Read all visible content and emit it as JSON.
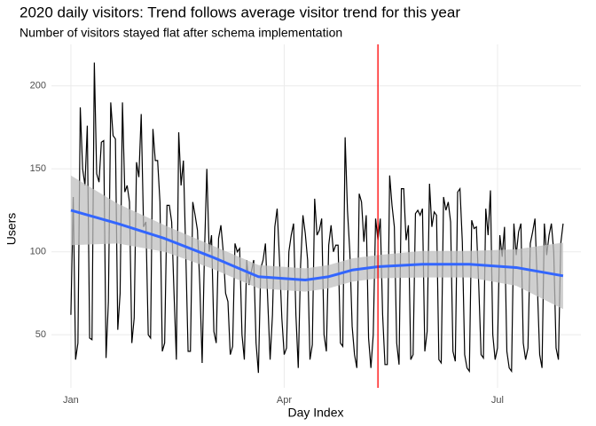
{
  "chart_data": {
    "type": "line",
    "title": "2020 daily visitors: Trend follows average visitor trend for this year",
    "subtitle": "Number of visitors stayed flat after schema implementation",
    "x_label": "Day Index",
    "y_label": "Users",
    "xlim": [
      -8.3,
      217.6
    ],
    "ylim": [
      18,
      225
    ],
    "xticks": [
      {
        "value": 0,
        "label": "Jan"
      },
      {
        "value": 91,
        "label": "Apr"
      },
      {
        "value": 182,
        "label": "Jul"
      }
    ],
    "yticks": [
      50,
      100,
      150,
      200
    ],
    "grid": true,
    "series": [
      {
        "color": "#000000",
        "values": [
          62,
          133,
          35,
          45,
          187,
          150,
          140,
          176,
          48,
          47,
          214,
          147,
          142,
          166,
          167,
          36,
          70,
          190,
          170,
          168,
          53,
          75,
          190,
          136,
          140,
          130,
          45,
          60,
          154,
          145,
          183,
          115,
          118,
          50,
          48,
          174,
          155,
          155,
          130,
          40,
          45,
          128,
          128,
          118,
          75,
          35,
          172,
          140,
          155,
          100,
          40,
          40,
          130,
          122,
          113,
          80,
          33,
          100,
          150,
          100,
          110,
          52,
          45,
          108,
          116,
          100,
          75,
          70,
          38,
          43,
          105,
          100,
          102,
          50,
          35,
          95,
          80,
          88,
          95,
          45,
          27,
          90,
          95,
          105,
          70,
          35,
          62,
          115,
          126,
          95,
          60,
          38,
          42,
          100,
          110,
          117,
          62,
          30,
          92,
          122,
          111,
          95,
          35,
          44,
          132,
          110,
          113,
          120,
          50,
          40,
          104,
          116,
          100,
          104,
          104,
          45,
          43,
          169,
          125,
          100,
          55,
          38,
          30,
          135,
          130,
          106,
          122,
          48,
          30,
          50,
          120,
          107,
          120,
          62,
          32,
          32,
          146,
          128,
          115,
          45,
          32,
          138,
          138,
          107,
          116,
          35,
          38,
          123,
          125,
          122,
          126,
          40,
          52,
          141,
          115,
          124,
          122,
          35,
          33,
          133,
          125,
          130,
          118,
          40,
          34,
          136,
          138,
          106,
          38,
          30,
          28,
          119,
          114,
          115,
          80,
          38,
          36,
          126,
          110,
          137,
          50,
          35,
          42,
          110,
          97,
          115,
          40,
          30,
          28,
          117,
          98,
          112,
          117,
          45,
          35,
          42,
          105,
          112,
          120,
          80,
          38,
          30,
          117,
          98,
          110,
          117,
          100,
          42,
          35,
          105,
          117
        ]
      }
    ],
    "smooth": {
      "color": "#3366ff",
      "band_color": "#bfbfbf",
      "x": [
        0,
        20,
        40,
        60,
        80,
        100,
        110,
        120,
        131,
        150,
        170,
        190,
        210
      ],
      "values": [
        125,
        117,
        108,
        97,
        85,
        83,
        85,
        89,
        91,
        92.5,
        92.5,
        90.5,
        85.5
      ],
      "lower": [
        104,
        105,
        100,
        90,
        78,
        76,
        78,
        82,
        84,
        84.5,
        84.5,
        79.5,
        65.5
      ],
      "upper": [
        146,
        129,
        116,
        104,
        92,
        90,
        92,
        96,
        98,
        100.5,
        100.5,
        101.5,
        105.5
      ]
    },
    "vline": {
      "x": 131,
      "color": "#ff0000"
    }
  }
}
